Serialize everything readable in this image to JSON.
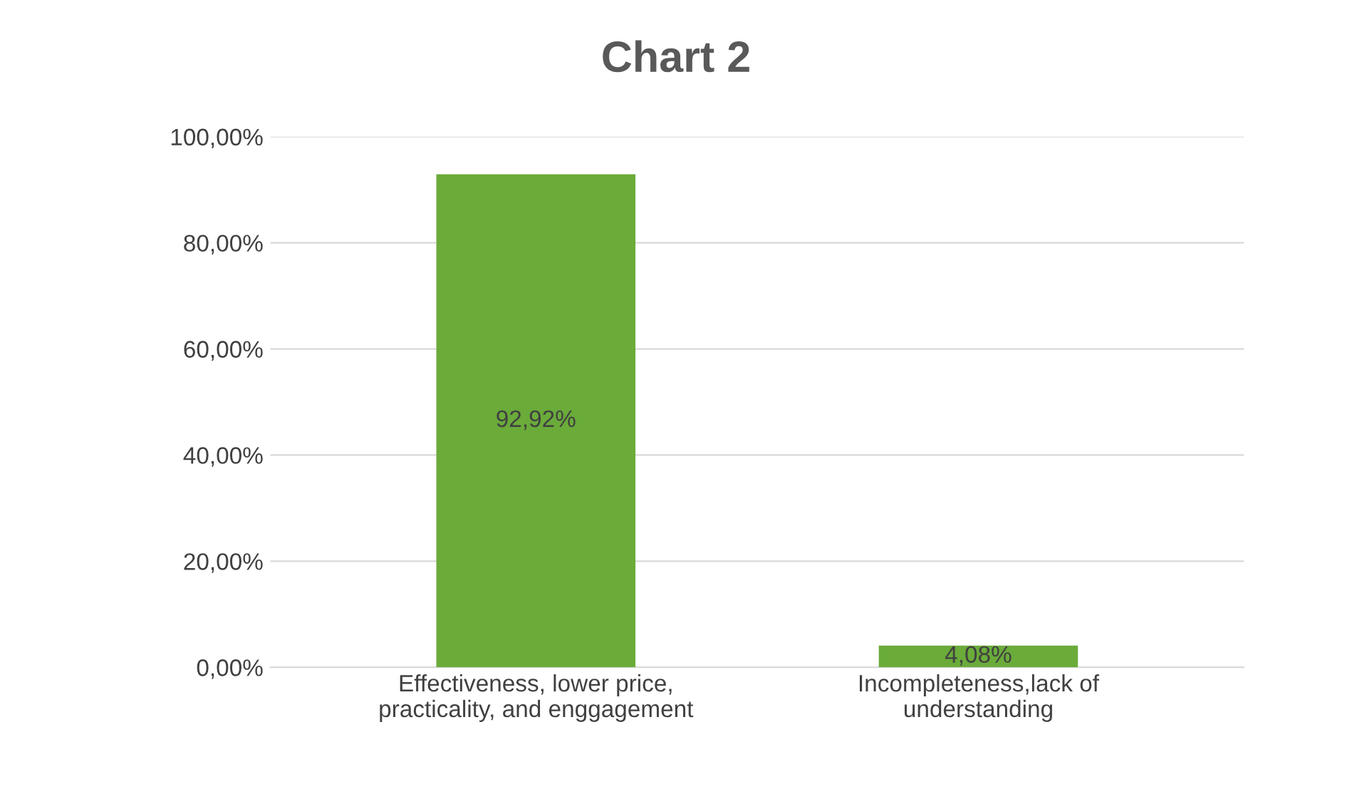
{
  "chart_data": {
    "type": "bar",
    "title": "Chart 2",
    "categories": [
      "Effectiveness, lower price, practicality, and enggagement",
      "Incompleteness,lack of understanding"
    ],
    "values": [
      92.92,
      4.08
    ],
    "color": "#6aab3a",
    "value_labels": [
      "92,92%",
      "4,08%"
    ],
    "ylim": [
      0,
      100
    ],
    "yticks": [
      {
        "value": 0,
        "label": "0,00%"
      },
      {
        "value": 20,
        "label": "20,00%"
      },
      {
        "value": 40,
        "label": "40,00%"
      },
      {
        "value": 60,
        "label": "60,00%"
      },
      {
        "value": 80,
        "label": "80,00%"
      },
      {
        "value": 100,
        "label": "100,00%"
      }
    ],
    "grid": "y"
  }
}
